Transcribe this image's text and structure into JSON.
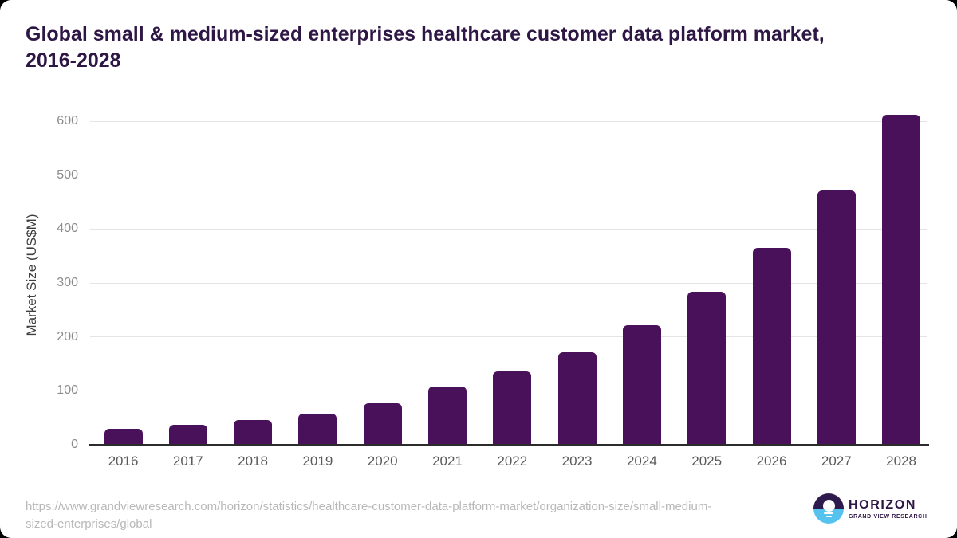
{
  "title_lines": [
    "Global small & medium-sized enterprises healthcare customer data platform market,",
    "2016-2028"
  ],
  "chart_data": {
    "type": "bar",
    "title": "Global small & medium-sized enterprises healthcare customer data platform market, 2016-2028",
    "categories": [
      "2016",
      "2017",
      "2018",
      "2019",
      "2020",
      "2021",
      "2022",
      "2023",
      "2024",
      "2025",
      "2026",
      "2027",
      "2028"
    ],
    "values": [
      29,
      37,
      46,
      58,
      77,
      108,
      136,
      172,
      221,
      284,
      365,
      471,
      612
    ],
    "xlabel": "",
    "ylabel": "Market Size (US$M)",
    "ylim": [
      0,
      600
    ],
    "y_ticks": [
      0,
      100,
      200,
      300,
      400,
      500,
      600
    ],
    "grid": "horizontal-only",
    "legend": "none",
    "bar_color": "#491159"
  },
  "colors": {
    "bar": "#491159",
    "title_text": "#2e1745",
    "gridline": "#e4e4e4",
    "axis_line": "#2b2b2b",
    "y_tick_text": "#8c8c8c",
    "x_tick_text": "#58595b",
    "url_text": "#b8b8b8",
    "logo_dark_purple": "#2e1b4d",
    "logo_light_blue": "#55c3ee"
  },
  "footer": {
    "source_url_lines": [
      "https://www.grandviewresearch.com/horizon/statistics/healthcare-customer-data-platform-market/organization-size/small-medium-",
      "sized-enterprises/global"
    ],
    "logo": {
      "brand": "HORIZON",
      "sub_brand": "GRAND VIEW RESEARCH"
    }
  }
}
